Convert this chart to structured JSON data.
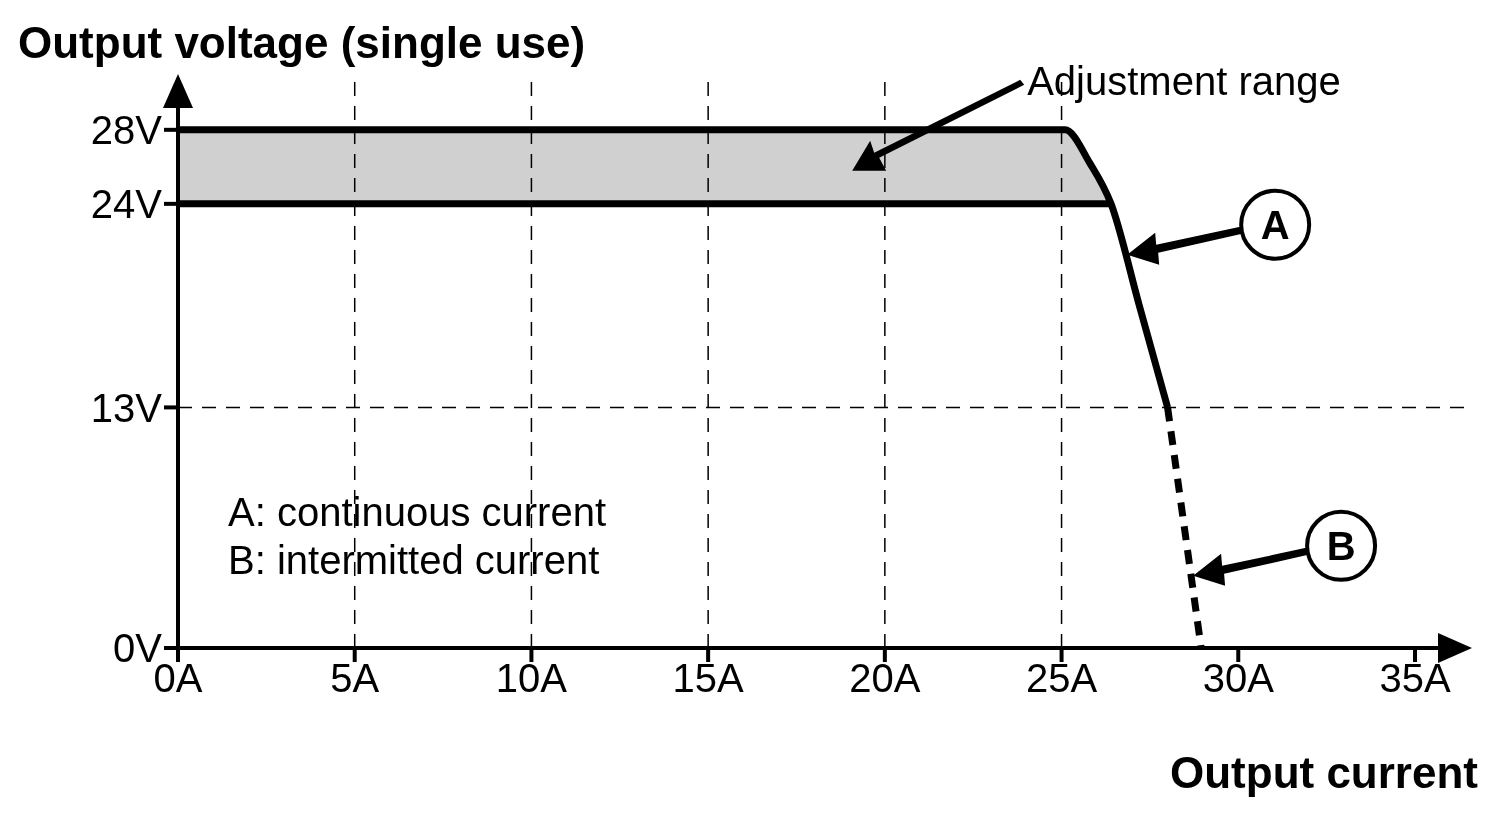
{
  "chart_data": {
    "type": "line",
    "ylabel": "Output voltage (single use)",
    "xlabel": "Output current",
    "xlim": [
      0,
      36.5
    ],
    "ylim": [
      0,
      30.8
    ],
    "xticks": [
      {
        "value": 0,
        "label": "0A"
      },
      {
        "value": 5,
        "label": "5A"
      },
      {
        "value": 10,
        "label": "10A"
      },
      {
        "value": 15,
        "label": "15A"
      },
      {
        "value": 20,
        "label": "20A"
      },
      {
        "value": 25,
        "label": "25A"
      },
      {
        "value": 30,
        "label": "30A"
      },
      {
        "value": 35,
        "label": "35A"
      }
    ],
    "yticks": [
      {
        "value": 0,
        "label": "0V"
      },
      {
        "value": 13,
        "label": "13V"
      },
      {
        "value": 24,
        "label": "24V"
      },
      {
        "value": 28,
        "label": "28V"
      }
    ],
    "series": [
      {
        "name": "A",
        "color": "#000000",
        "x": [
          0,
          25.1,
          25.8,
          26.4,
          27.2,
          28.0
        ],
        "values": [
          28,
          28,
          26.2,
          24,
          18.5,
          13
        ],
        "lower": [
          24,
          24,
          24,
          24,
          null,
          null
        ],
        "upper": [
          28,
          28,
          26.2,
          24,
          null,
          null
        ]
      },
      {
        "color": "#000000",
        "x": [
          0,
          26.4
        ],
        "values": [
          24,
          24
        ]
      },
      {
        "name": "B",
        "color": "#000000",
        "x": [
          28.0,
          28.95
        ],
        "values": [
          13,
          0
        ],
        "line_style": "dashed"
      }
    ],
    "ref_lines": [
      {
        "axis": "x",
        "value": 5,
        "line_style": "dashed",
        "color": "#000000"
      },
      {
        "axis": "x",
        "value": 10,
        "line_style": "dashed",
        "color": "#000000"
      },
      {
        "axis": "x",
        "value": 15,
        "line_style": "dashed",
        "color": "#000000"
      },
      {
        "axis": "x",
        "value": 20,
        "line_style": "dashed",
        "color": "#000000"
      },
      {
        "axis": "x",
        "value": 25,
        "line_style": "dashed",
        "color": "#000000"
      },
      {
        "axis": "y",
        "value": 13,
        "line_style": "dashed",
        "color": "#000000"
      }
    ],
    "annotations": [
      "Adjustment range",
      "A: continuous current",
      "B: intermitted current"
    ],
    "legend": "right",
    "grid": false,
    "marker": "none"
  }
}
